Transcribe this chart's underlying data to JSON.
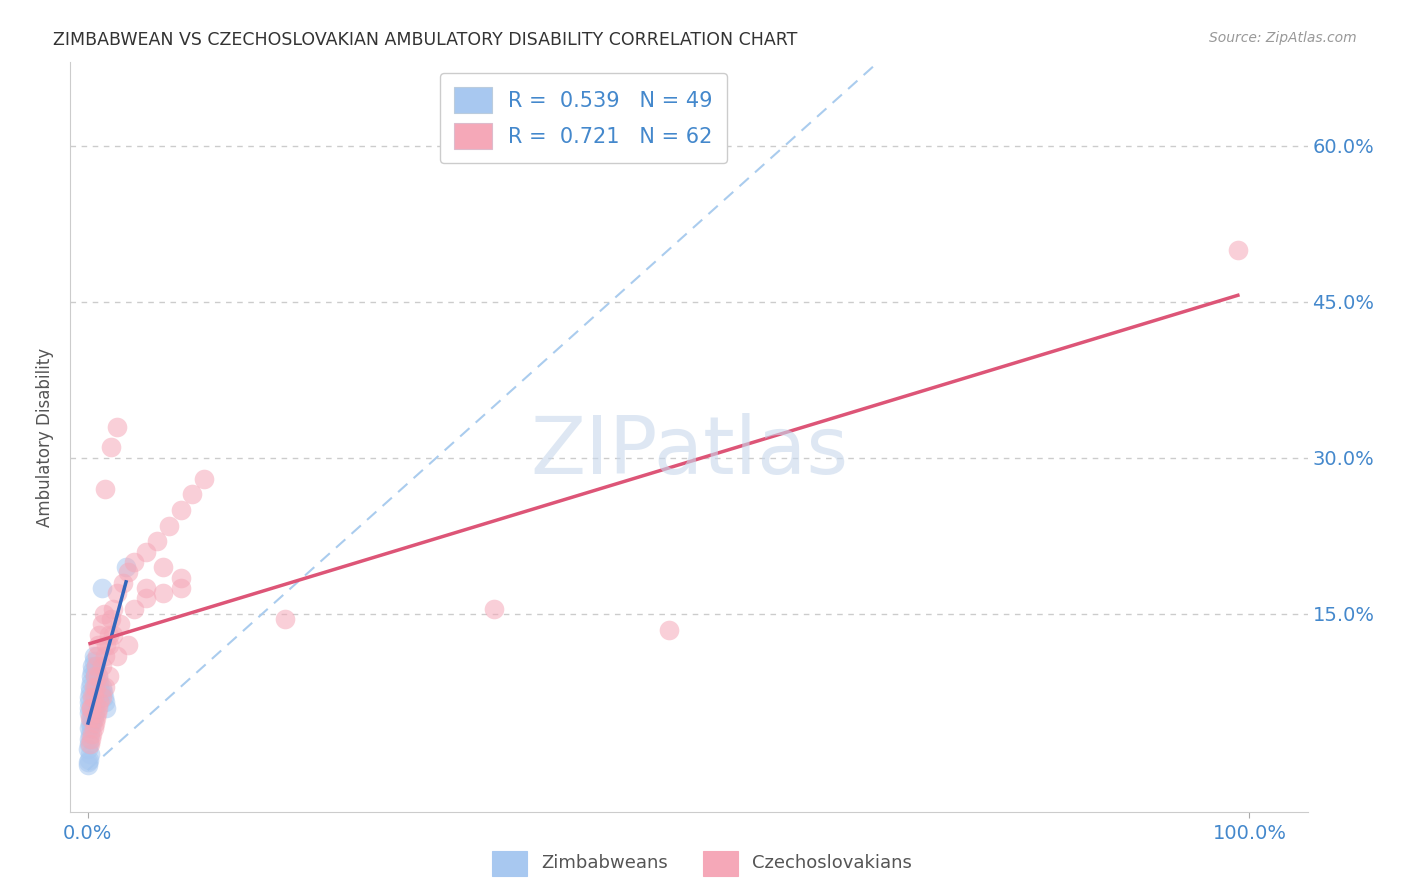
{
  "title": "ZIMBABWEAN VS CZECHOSLOVAKIAN AMBULATORY DISABILITY CORRELATION CHART",
  "source": "Source: ZipAtlas.com",
  "ylabel": "Ambulatory Disability",
  "watermark": "ZIPatlas",
  "legend_entries": [
    {
      "label": "Zimbabweans",
      "R": "0.539",
      "N": "49",
      "color": "#a8c8f0"
    },
    {
      "label": "Czechoslovakians",
      "R": "0.721",
      "N": "62",
      "color": "#f5a8b8"
    }
  ],
  "zim_color": "#a8c8f0",
  "czech_color": "#f5a8b8",
  "zim_line_color": "#3366bb",
  "czech_line_color": "#dd5577",
  "diagonal_color": "#aaccee",
  "background_color": "#ffffff",
  "grid_color": "#cccccc",
  "axis_label_color": "#4488cc",
  "title_color": "#333333",
  "y_tick_vals": [
    0.15,
    0.3,
    0.45,
    0.6
  ],
  "y_tick_labels": [
    "15.0%",
    "30.0%",
    "45.0%",
    "60.0%"
  ],
  "x_tick_vals": [
    0.0,
    1.0
  ],
  "x_tick_labels": [
    "0.0%",
    "100.0%"
  ],
  "xlim": [
    -0.015,
    1.05
  ],
  "ylim": [
    -0.04,
    0.68
  ],
  "zim_x": [
    0.0008,
    0.001,
    0.0012,
    0.0015,
    0.002,
    0.0022,
    0.003,
    0.003,
    0.004,
    0.004,
    0.005,
    0.005,
    0.006,
    0.006,
    0.007,
    0.007,
    0.008,
    0.009,
    0.009,
    0.01,
    0.011,
    0.012,
    0.013,
    0.014,
    0.015,
    0.016,
    0.001,
    0.002,
    0.003,
    0.004,
    0.005,
    0.006,
    0.007,
    0.008,
    0.009,
    0.0005,
    0.001,
    0.0015,
    0.002,
    0.003,
    0.004,
    0.005,
    0.006,
    0.0003,
    0.0005,
    0.001,
    0.002,
    0.033,
    0.012
  ],
  "zim_y": [
    0.055,
    0.06,
    0.065,
    0.07,
    0.075,
    0.08,
    0.085,
    0.09,
    0.095,
    0.1,
    0.105,
    0.11,
    0.09,
    0.095,
    0.1,
    0.08,
    0.085,
    0.09,
    0.08,
    0.085,
    0.075,
    0.08,
    0.075,
    0.07,
    0.065,
    0.06,
    0.04,
    0.045,
    0.05,
    0.055,
    0.06,
    0.065,
    0.07,
    0.075,
    0.08,
    0.02,
    0.025,
    0.03,
    0.035,
    0.04,
    0.045,
    0.05,
    0.055,
    0.005,
    0.008,
    0.01,
    0.015,
    0.195,
    0.175
  ],
  "czech_x": [
    0.002,
    0.003,
    0.004,
    0.005,
    0.006,
    0.007,
    0.008,
    0.009,
    0.01,
    0.012,
    0.014,
    0.016,
    0.018,
    0.02,
    0.022,
    0.025,
    0.03,
    0.035,
    0.04,
    0.05,
    0.06,
    0.07,
    0.08,
    0.09,
    0.1,
    0.003,
    0.005,
    0.007,
    0.009,
    0.012,
    0.015,
    0.018,
    0.022,
    0.028,
    0.002,
    0.003,
    0.004,
    0.005,
    0.006,
    0.007,
    0.008,
    0.009,
    0.01,
    0.012,
    0.015,
    0.018,
    0.025,
    0.035,
    0.04,
    0.05,
    0.065,
    0.08,
    0.015,
    0.02,
    0.025,
    0.05,
    0.065,
    0.08,
    0.17,
    0.35,
    0.99,
    0.5
  ],
  "czech_y": [
    0.05,
    0.06,
    0.07,
    0.08,
    0.09,
    0.1,
    0.11,
    0.12,
    0.13,
    0.14,
    0.15,
    0.12,
    0.13,
    0.145,
    0.155,
    0.17,
    0.18,
    0.19,
    0.2,
    0.21,
    0.22,
    0.235,
    0.25,
    0.265,
    0.28,
    0.06,
    0.07,
    0.08,
    0.09,
    0.1,
    0.11,
    0.12,
    0.13,
    0.14,
    0.025,
    0.03,
    0.035,
    0.04,
    0.045,
    0.05,
    0.055,
    0.06,
    0.065,
    0.07,
    0.08,
    0.09,
    0.11,
    0.12,
    0.155,
    0.165,
    0.17,
    0.175,
    0.27,
    0.31,
    0.33,
    0.175,
    0.195,
    0.185,
    0.145,
    0.155,
    0.5,
    0.135
  ]
}
